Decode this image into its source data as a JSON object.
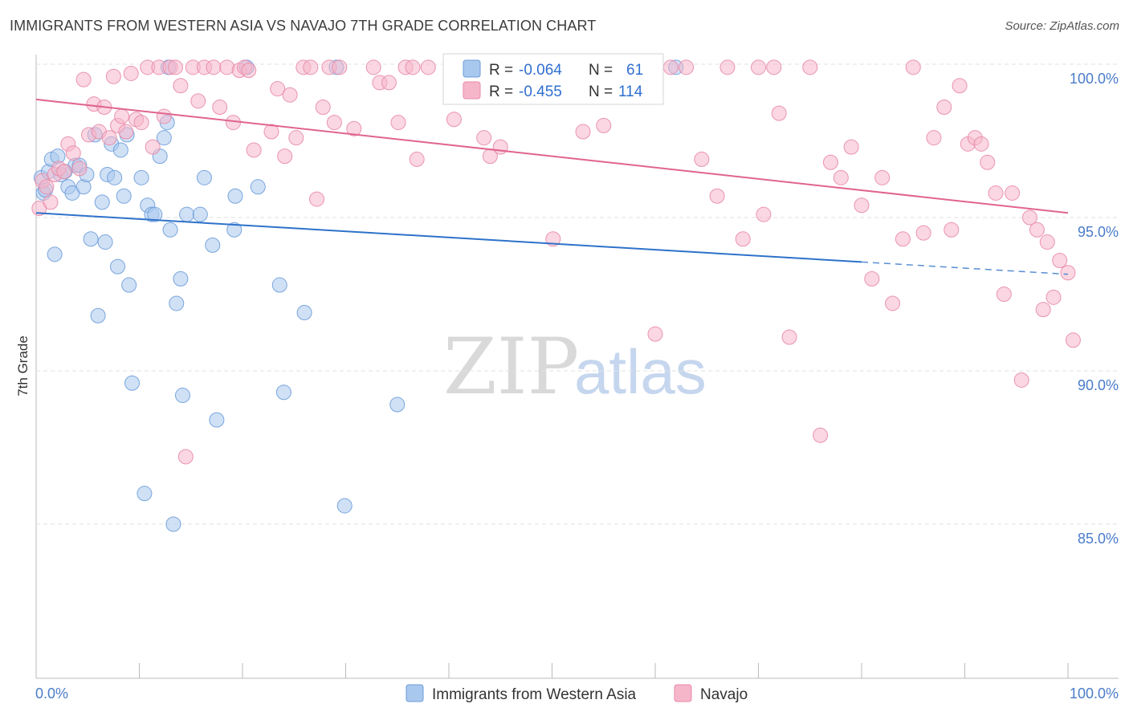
{
  "title": "IMMIGRANTS FROM WESTERN ASIA VS NAVAJO 7TH GRADE CORRELATION CHART",
  "source": "Source: ZipAtlas.com",
  "watermark": {
    "zip": "ZIP",
    "atlas": "atlas"
  },
  "colors": {
    "blue_fill": "#a9c8ee",
    "blue_stroke": "#6d9cd9",
    "blue_line": "#2e72c9",
    "pink_fill": "#f6b6ca",
    "pink_stroke": "#e88aa8",
    "pink_line": "#e0648f",
    "grid": "#e2e2e2",
    "tick_text": "#4a7cc9"
  },
  "legend": {
    "blue": {
      "r_label": "R = ",
      "r_value": "-0.064",
      "n_label": "N = ",
      "n_value": "61"
    },
    "pink": {
      "r_label": "R = ",
      "r_value": "-0.455",
      "n_label": "N = ",
      "n_value": "114"
    }
  },
  "chart_data": {
    "type": "scatter",
    "title": "IMMIGRANTS FROM WESTERN ASIA VS NAVAJO 7TH GRADE CORRELATION CHART",
    "xlabel": "",
    "ylabel": "7th Grade",
    "xlim": [
      0,
      100
    ],
    "ylim": [
      80.5,
      100.8
    ],
    "x_tick_labels": [
      "0.0%",
      "100.0%"
    ],
    "y_ticks": [
      85,
      90,
      95,
      100
    ],
    "y_tick_labels": [
      "85.0%",
      "90.0%",
      "95.0%",
      "100.0%"
    ],
    "grid": true,
    "legend_position": "top-center",
    "series": [
      {
        "name": "Immigrants from Western Asia",
        "color": "#a9c8ee",
        "trend": {
          "x0": 0,
          "y0": 95.15,
          "x1": 80,
          "y1": 93.55,
          "dash_to_x": 100,
          "dash_to_y": 93.15
        },
        "points": [
          [
            0.5,
            96.3
          ],
          [
            0.7,
            95.8
          ],
          [
            0.9,
            95.9
          ],
          [
            1.2,
            96.5
          ],
          [
            1.5,
            96.9
          ],
          [
            1.8,
            93.8
          ],
          [
            2.1,
            97.0
          ],
          [
            2.4,
            96.4
          ],
          [
            2.8,
            96.5
          ],
          [
            3.1,
            96.0
          ],
          [
            3.5,
            95.8
          ],
          [
            3.8,
            96.7
          ],
          [
            4.2,
            96.7
          ],
          [
            4.6,
            96.0
          ],
          [
            4.9,
            96.4
          ],
          [
            5.3,
            94.3
          ],
          [
            5.7,
            97.7
          ],
          [
            6.0,
            91.8
          ],
          [
            6.4,
            95.5
          ],
          [
            6.7,
            94.2
          ],
          [
            6.9,
            96.4
          ],
          [
            7.3,
            97.4
          ],
          [
            7.6,
            96.3
          ],
          [
            7.9,
            93.4
          ],
          [
            8.2,
            97.2
          ],
          [
            8.5,
            95.7
          ],
          [
            8.8,
            97.7
          ],
          [
            9.0,
            92.8
          ],
          [
            9.3,
            89.6
          ],
          [
            10.2,
            96.3
          ],
          [
            10.5,
            86.0
          ],
          [
            10.8,
            95.4
          ],
          [
            11.2,
            95.1
          ],
          [
            11.5,
            95.1
          ],
          [
            12.0,
            97.0
          ],
          [
            12.4,
            97.6
          ],
          [
            12.7,
            98.1
          ],
          [
            13.0,
            94.6
          ],
          [
            13.3,
            85.0
          ],
          [
            13.6,
            92.2
          ],
          [
            14.0,
            93.0
          ],
          [
            14.2,
            89.2
          ],
          [
            14.6,
            95.1
          ],
          [
            15.9,
            95.1
          ],
          [
            16.3,
            96.3
          ],
          [
            17.1,
            94.1
          ],
          [
            17.5,
            88.4
          ],
          [
            19.2,
            94.6
          ],
          [
            19.3,
            95.7
          ],
          [
            20.4,
            99.9
          ],
          [
            21.5,
            96.0
          ],
          [
            23.6,
            92.8
          ],
          [
            24.0,
            89.3
          ],
          [
            26.0,
            91.9
          ],
          [
            29.1,
            99.9
          ],
          [
            29.9,
            85.6
          ],
          [
            35.0,
            88.9
          ],
          [
            47.0,
            99.9
          ],
          [
            53.0,
            99.9
          ],
          [
            62.0,
            99.9
          ],
          [
            12.8,
            99.9
          ]
        ]
      },
      {
        "name": "Navajo",
        "color": "#f6b6ca",
        "trend": {
          "x0": 0,
          "y0": 98.85,
          "x1": 100,
          "y1": 95.15
        },
        "points": [
          [
            0.3,
            95.3
          ],
          [
            0.6,
            96.2
          ],
          [
            1.0,
            96.0
          ],
          [
            1.4,
            95.5
          ],
          [
            1.8,
            96.4
          ],
          [
            2.2,
            96.6
          ],
          [
            2.7,
            96.5
          ],
          [
            3.1,
            97.4
          ],
          [
            3.6,
            97.1
          ],
          [
            4.2,
            96.6
          ],
          [
            4.6,
            99.5
          ],
          [
            5.1,
            97.7
          ],
          [
            5.6,
            98.7
          ],
          [
            6.1,
            97.8
          ],
          [
            6.6,
            98.6
          ],
          [
            7.1,
            97.6
          ],
          [
            7.5,
            99.6
          ],
          [
            7.9,
            98.0
          ],
          [
            8.3,
            98.3
          ],
          [
            8.7,
            97.8
          ],
          [
            9.2,
            99.7
          ],
          [
            9.7,
            98.2
          ],
          [
            10.2,
            98.1
          ],
          [
            10.8,
            99.9
          ],
          [
            11.3,
            97.3
          ],
          [
            11.9,
            99.9
          ],
          [
            12.4,
            98.3
          ],
          [
            13.0,
            99.9
          ],
          [
            13.5,
            99.9
          ],
          [
            14.0,
            99.3
          ],
          [
            14.5,
            87.2
          ],
          [
            15.2,
            99.9
          ],
          [
            15.7,
            98.8
          ],
          [
            16.3,
            99.9
          ],
          [
            17.2,
            99.9
          ],
          [
            17.8,
            98.6
          ],
          [
            18.5,
            99.9
          ],
          [
            19.1,
            98.1
          ],
          [
            19.7,
            99.8
          ],
          [
            20.2,
            99.9
          ],
          [
            20.6,
            99.8
          ],
          [
            21.1,
            97.2
          ],
          [
            22.8,
            97.8
          ],
          [
            23.4,
            99.2
          ],
          [
            24.1,
            97.0
          ],
          [
            24.6,
            99.0
          ],
          [
            25.2,
            97.6
          ],
          [
            25.9,
            99.9
          ],
          [
            26.6,
            99.9
          ],
          [
            27.2,
            95.6
          ],
          [
            27.8,
            98.6
          ],
          [
            28.4,
            99.9
          ],
          [
            28.9,
            98.1
          ],
          [
            29.4,
            99.9
          ],
          [
            30.8,
            97.9
          ],
          [
            32.7,
            99.9
          ],
          [
            33.3,
            99.4
          ],
          [
            34.2,
            99.4
          ],
          [
            35.1,
            98.1
          ],
          [
            35.8,
            99.9
          ],
          [
            36.5,
            99.9
          ],
          [
            36.9,
            96.9
          ],
          [
            38.0,
            99.9
          ],
          [
            40.5,
            98.2
          ],
          [
            43.4,
            97.6
          ],
          [
            44.0,
            97.0
          ],
          [
            45.0,
            97.3
          ],
          [
            48.2,
            99.9
          ],
          [
            50.1,
            94.3
          ],
          [
            53.0,
            97.8
          ],
          [
            55.0,
            98.0
          ],
          [
            58.0,
            99.9
          ],
          [
            60.0,
            91.2
          ],
          [
            61.5,
            99.9
          ],
          [
            63.0,
            99.9
          ],
          [
            64.5,
            96.9
          ],
          [
            66.0,
            95.7
          ],
          [
            67.0,
            99.9
          ],
          [
            68.5,
            94.3
          ],
          [
            70.0,
            99.9
          ],
          [
            70.5,
            95.1
          ],
          [
            71.5,
            99.9
          ],
          [
            72.0,
            98.4
          ],
          [
            73.0,
            91.1
          ],
          [
            75.0,
            99.9
          ],
          [
            76.0,
            87.9
          ],
          [
            77.0,
            96.8
          ],
          [
            78.0,
            96.3
          ],
          [
            79.0,
            97.3
          ],
          [
            80.0,
            95.4
          ],
          [
            81.0,
            93.0
          ],
          [
            82.0,
            96.3
          ],
          [
            83.0,
            92.2
          ],
          [
            84.0,
            94.3
          ],
          [
            85.0,
            99.9
          ],
          [
            86.0,
            94.5
          ],
          [
            87.0,
            97.6
          ],
          [
            88.0,
            98.6
          ],
          [
            88.7,
            94.6
          ],
          [
            89.5,
            99.3
          ],
          [
            90.3,
            97.4
          ],
          [
            91.0,
            97.6
          ],
          [
            91.6,
            97.4
          ],
          [
            92.2,
            96.8
          ],
          [
            93.0,
            95.8
          ],
          [
            93.8,
            92.5
          ],
          [
            94.6,
            95.8
          ],
          [
            95.5,
            89.7
          ],
          [
            96.3,
            95.0
          ],
          [
            97.0,
            94.6
          ],
          [
            97.6,
            92.0
          ],
          [
            98.0,
            94.2
          ],
          [
            98.6,
            92.4
          ],
          [
            99.2,
            93.6
          ],
          [
            100.0,
            93.2
          ],
          [
            100.5,
            91.0
          ]
        ]
      }
    ]
  },
  "bottom_legend": [
    "Immigrants from Western Asia",
    "Navajo"
  ]
}
